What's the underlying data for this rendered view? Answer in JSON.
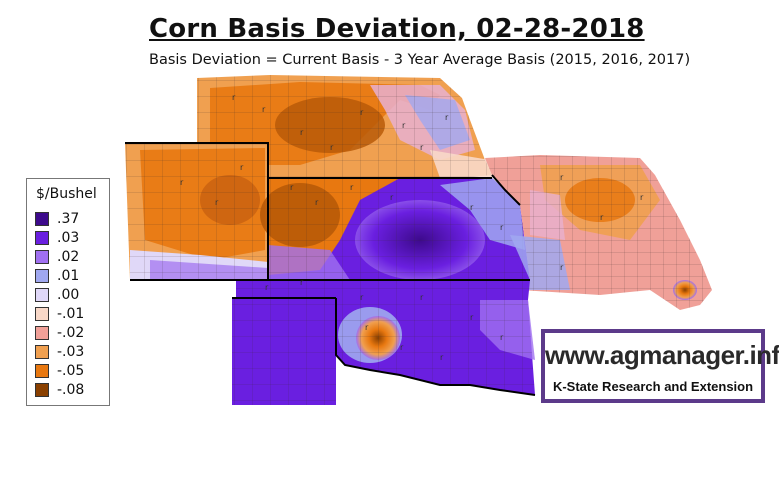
{
  "title": "Corn Basis Deviation, 02-28-2018",
  "subtitle": "Basis Deviation = Current Basis - 3 Year Average Basis (2015, 2016, 2017)",
  "legend": {
    "title": "$/Bushel",
    "items": [
      {
        "label": ".37",
        "color": "#3d0a8c"
      },
      {
        "label": ".03",
        "color": "#6a1fe0"
      },
      {
        "label": ".02",
        "color": "#a070f0"
      },
      {
        "label": ".01",
        "color": "#a0a8f0"
      },
      {
        "label": ".00",
        "color": "#e0d8f8"
      },
      {
        "label": "-.01",
        "color": "#f8d8c8"
      },
      {
        "label": "-.02",
        "color": "#f0a098"
      },
      {
        "label": "-.03",
        "color": "#f0a050"
      },
      {
        "label": "-.05",
        "color": "#e87810"
      },
      {
        "label": "-.08",
        "color": "#8a4000"
      }
    ]
  },
  "logo": {
    "url": "www.agmanager.info",
    "org": "K-State Research and Extension"
  },
  "colors": {
    "deep_purple": "#3d0a8c",
    "purple": "#6a1fe0",
    "light_purple": "#a070f0",
    "orange": "#e87810",
    "light_orange": "#f0a050",
    "salmon": "#f0a098",
    "brown": "#8a4000",
    "logo_border": "#5c3a8a"
  }
}
